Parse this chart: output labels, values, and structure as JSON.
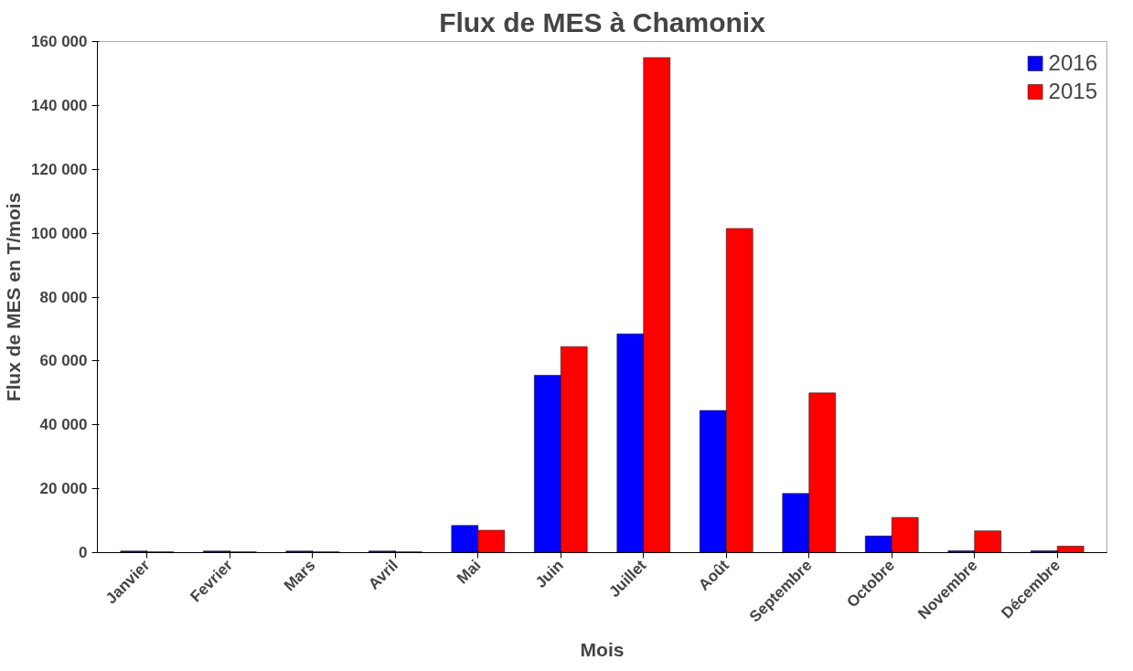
{
  "chart_data": {
    "type": "bar",
    "title": "Flux de MES à Chamonix",
    "xlabel": "Mois",
    "ylabel": "Flux de MES en T/mois",
    "categories": [
      "Janvier",
      "Fevrier",
      "Mars",
      "Avril",
      "Mai",
      "Juin",
      "Juillet",
      "Août",
      "Septembre",
      "Octobre",
      "Novembre",
      "Décembre"
    ],
    "series": [
      {
        "name": "2016",
        "color": "#0000ff",
        "values": [
          500,
          500,
          500,
          500,
          8500,
          55500,
          68500,
          44500,
          18500,
          5200,
          600,
          600
        ]
      },
      {
        "name": "2015",
        "color": "#ff0000",
        "values": [
          300,
          300,
          300,
          300,
          7000,
          64500,
          155000,
          101500,
          50000,
          11000,
          6800,
          2000
        ]
      }
    ],
    "ylim": [
      0,
      160000
    ],
    "yticks": [
      {
        "value": 0,
        "label": "0"
      },
      {
        "value": 20000,
        "label": "20 000"
      },
      {
        "value": 40000,
        "label": "40 000"
      },
      {
        "value": 60000,
        "label": "60 000"
      },
      {
        "value": 80000,
        "label": "80 000"
      },
      {
        "value": 100000,
        "label": "100 000"
      },
      {
        "value": 120000,
        "label": "120 000"
      },
      {
        "value": 140000,
        "label": "140 000"
      },
      {
        "value": 160000,
        "label": "160 000"
      }
    ],
    "grid": false,
    "legend": "top right"
  }
}
